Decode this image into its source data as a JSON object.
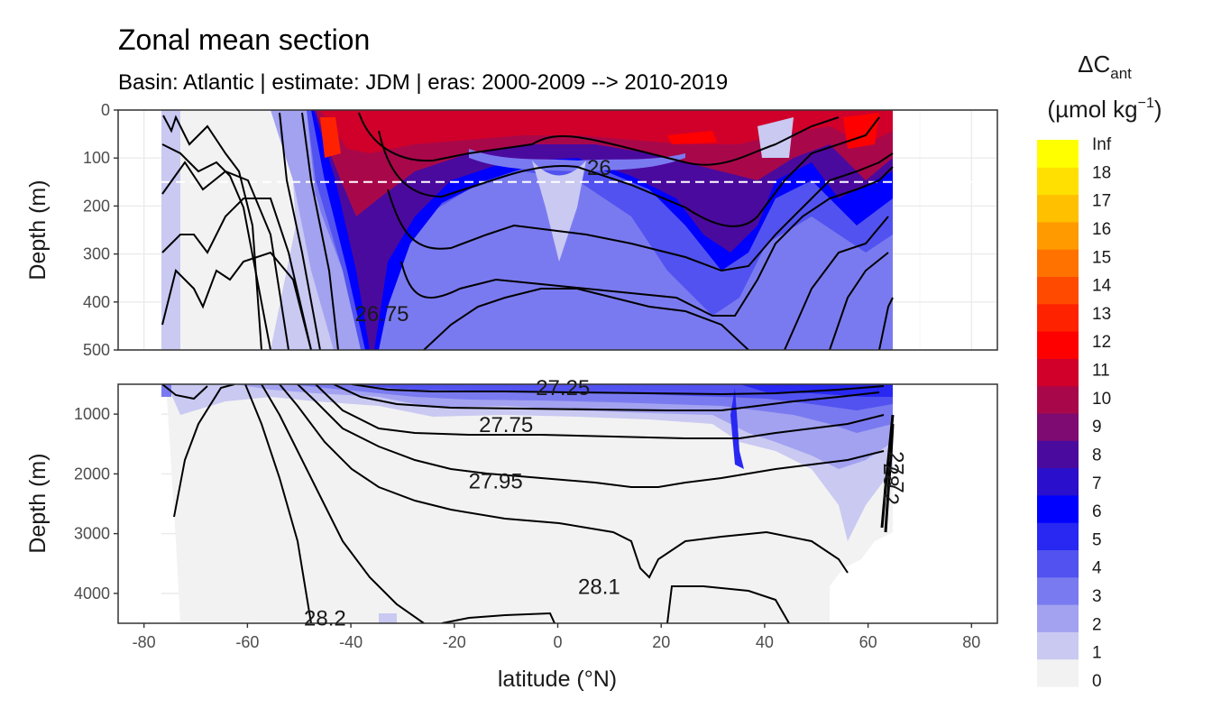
{
  "chart_data": {
    "type": "contour",
    "title": "Zonal mean section",
    "subtitle": "Basin: Atlantic | estimate: JDM  | eras: 2000-2009 --> 2010-2019",
    "xlabel": "latitude (°N)",
    "ylabel_top": "Depth (m)",
    "ylabel_bottom": "Depth (m)",
    "xlim": [
      -85,
      85
    ],
    "x_ticks": [
      "-80",
      "-60",
      "-40",
      "-20",
      "0",
      "20",
      "40",
      "60",
      "80"
    ],
    "x_tick_values": [
      -80,
      -60,
      -40,
      -20,
      0,
      20,
      40,
      60,
      80
    ],
    "top_panel": {
      "ylim": [
        0,
        500
      ],
      "y_ticks": [
        "0",
        "100",
        "200",
        "300",
        "400",
        "500"
      ],
      "y_tick_values": [
        0,
        100,
        200,
        300,
        400,
        500
      ],
      "reference_depth_m": 150
    },
    "bottom_panel": {
      "ylim": [
        500,
        4500
      ],
      "y_ticks": [
        "1000",
        "2000",
        "3000",
        "4000"
      ],
      "y_tick_values": [
        1000,
        2000,
        3000,
        4000
      ]
    },
    "legend": {
      "title": "ΔC",
      "title_sub": "ant",
      "unit_prefix": "(µmol kg",
      "unit_sup": "−1",
      "unit_suffix": ")",
      "breaks": [
        "Inf",
        "18",
        "17",
        "16",
        "15",
        "14",
        "13",
        "12",
        "11",
        "10",
        "9",
        "8",
        "7",
        "6",
        "5",
        "4",
        "3",
        "2",
        "1",
        "0"
      ],
      "colors": [
        "#f2f2f2",
        "#c9c9f2",
        "#a2a2f0",
        "#7a7af0",
        "#5252f0",
        "#2828f2",
        "#0000ff",
        "#2a10cc",
        "#4b0a9e",
        "#7e0b72",
        "#a8084a",
        "#d0002a",
        "#ff0000",
        "#ff2200",
        "#ff4a00",
        "#ff7200",
        "#ff9a00",
        "#ffc000",
        "#ffe000",
        "#ffff00"
      ]
    },
    "density_contours": [
      {
        "label": "26",
        "lat": 8,
        "depth": 120
      },
      {
        "label": "26.75",
        "lat": -34,
        "depth": 425
      },
      {
        "label": "27.25",
        "lat": 1,
        "depth": 560
      },
      {
        "label": "27.75",
        "lat": -10,
        "depth": 1180
      },
      {
        "label": "27.95",
        "lat": -12,
        "depth": 2120
      },
      {
        "label": "28.1",
        "lat": 8,
        "depth": 3890
      },
      {
        "label": "28.2",
        "lat": -45,
        "depth": 4420
      },
      {
        "label": "28.2",
        "lat": 63,
        "depth": 2050
      },
      {
        "label": "27.7",
        "lat": 64,
        "depth": 1850
      }
    ]
  }
}
